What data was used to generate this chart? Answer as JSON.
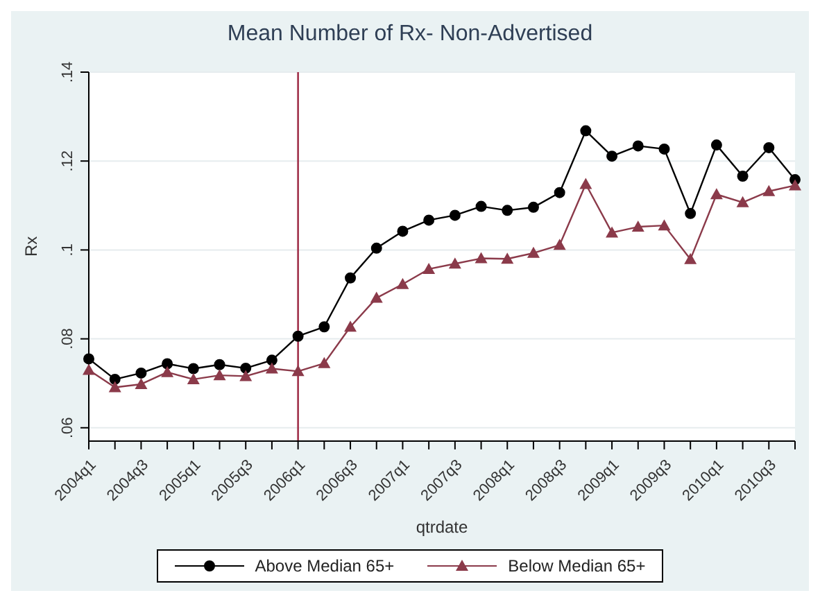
{
  "chart_data": {
    "type": "line",
    "title": "Mean Number of Rx- Non-Advertised",
    "xlabel": "qtrdate",
    "ylabel": "Rx",
    "categories": [
      "2004q1",
      null,
      "2004q3",
      null,
      "2005q1",
      null,
      "2005q3",
      null,
      "2006q1",
      null,
      "2006q3",
      null,
      "2007q1",
      null,
      "2007q3",
      null,
      "2008q1",
      null,
      "2008q3",
      null,
      "2009q1",
      null,
      "2009q3",
      null,
      "2010q1",
      null,
      "2010q3",
      null
    ],
    "series": [
      {
        "name": "Above Median 65+",
        "color": "#000000",
        "marker": "circle",
        "values": [
          0.0755,
          0.0709,
          0.0723,
          0.0744,
          0.0733,
          0.0742,
          0.0734,
          0.0752,
          0.0806,
          0.0827,
          0.0937,
          0.1004,
          0.1042,
          0.1067,
          0.1078,
          0.1098,
          0.1089,
          0.1096,
          0.1129,
          0.1268,
          0.1211,
          0.1234,
          0.1227,
          0.1082,
          0.1236,
          0.1166,
          0.123,
          0.1158
        ]
      },
      {
        "name": "Below Median 65+",
        "color": "#8b3a4a",
        "marker": "triangle",
        "values": [
          0.073,
          0.0691,
          0.0698,
          0.0725,
          0.0709,
          0.0718,
          0.0716,
          0.0733,
          0.0727,
          0.0745,
          0.0827,
          0.0892,
          0.0923,
          0.0957,
          0.0969,
          0.0981,
          0.098,
          0.0993,
          0.1011,
          0.1148,
          0.1039,
          0.1052,
          0.1055,
          0.0979,
          0.1125,
          0.1107,
          0.1132,
          0.1145
        ]
      }
    ],
    "ylim": [
      0.057,
      0.14
    ],
    "yticks": [
      {
        "value": 0.06,
        "label": ".06"
      },
      {
        "value": 0.08,
        "label": ".08"
      },
      {
        "value": 0.1,
        "label": ".1"
      },
      {
        "value": 0.12,
        "label": ".12"
      },
      {
        "value": 0.14,
        "label": ".14"
      }
    ],
    "ref_lines": [
      {
        "axis": "x",
        "value": "2006q1",
        "color": "#a0304a"
      }
    ],
    "grid": "y",
    "legend": "bottom",
    "line_style": "solid"
  }
}
